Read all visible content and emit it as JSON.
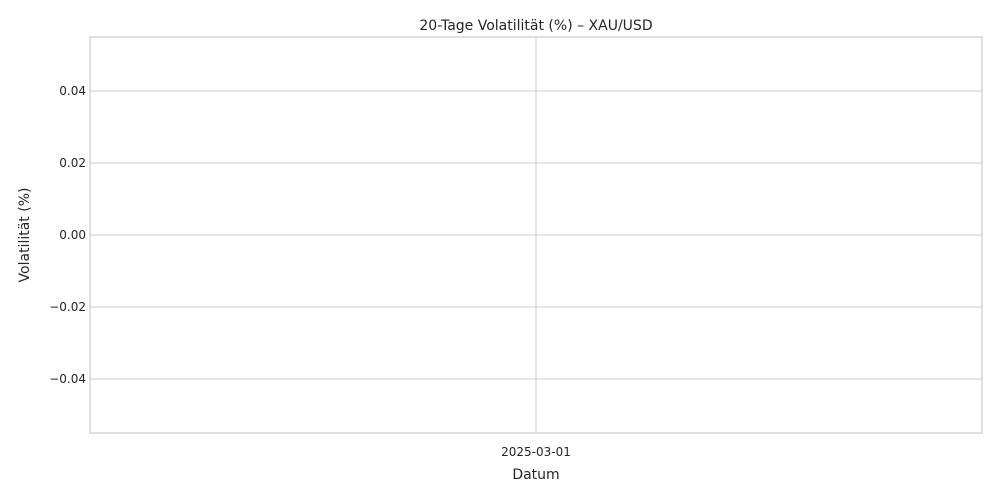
{
  "chart_data": {
    "type": "line",
    "title": "20-Tage Volatilität (%) – XAU/USD",
    "xlabel": "Datum",
    "ylabel": "Volatilität (%)",
    "x_ticks": [
      "2025-03-01"
    ],
    "y_ticks": [
      "−0.04",
      "−0.02",
      "0.00",
      "0.02",
      "0.04"
    ],
    "y_tick_values": [
      -0.04,
      -0.02,
      0.0,
      0.02,
      0.04
    ],
    "ylim": [
      -0.055,
      0.055
    ],
    "grid": true,
    "series": [
      {
        "x": [],
        "y": []
      }
    ],
    "colors": {
      "grid": "#cccccc",
      "frame": "#cccccc",
      "text": "#262626",
      "background": "#ffffff"
    }
  }
}
